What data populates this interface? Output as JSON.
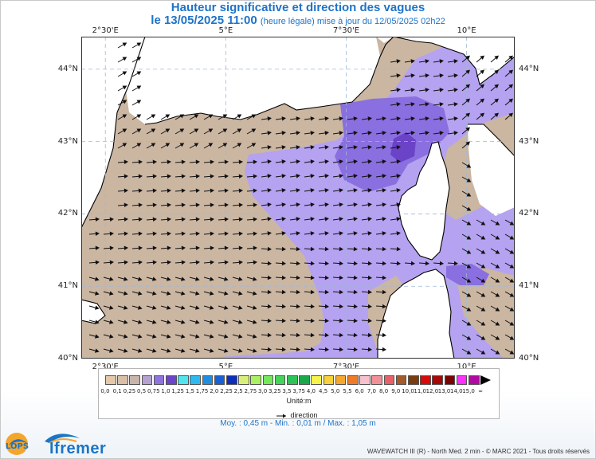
{
  "header": {
    "title": "Hauteur significative et direction des vagues",
    "date_time": "le 13/05/2025 11:00",
    "update_note": "(heure légale) mise à jour du 12/05/2025 02h22"
  },
  "map": {
    "lon_labels": [
      "2°30'E",
      "5°E",
      "7°30'E",
      "10°E"
    ],
    "lat_labels": [
      "44°N",
      "43°N",
      "42°N",
      "41°N",
      "40°N"
    ],
    "lon_values": [
      2.5,
      5,
      7.5,
      10
    ],
    "lat_values": [
      44,
      43,
      42,
      41,
      40
    ],
    "lon_range": [
      2.0,
      11.0
    ],
    "lat_range": [
      40.0,
      44.45
    ],
    "land_color": "#ffffff",
    "grid": "dashed"
  },
  "legend": {
    "colors": [
      "#e3c8aa",
      "#d8bfa8",
      "#c7b4aa",
      "#b5a2d3",
      "#8f74df",
      "#6b45c8",
      "#51e5ef",
      "#2cbaf0",
      "#1e8fe0",
      "#1860d8",
      "#0d2eb8",
      "#d8f07a",
      "#aaf060",
      "#75e85a",
      "#44d45a",
      "#2fc257",
      "#1aa84a",
      "#f4f44a",
      "#f8d03a",
      "#f4a830",
      "#ef7b27",
      "#f8c2cc",
      "#f2909a",
      "#e8606a",
      "#a45a2a",
      "#7a3d12",
      "#d80a0a",
      "#a80808",
      "#7a0404",
      "#ff30ff",
      "#b00aa0",
      "#000000"
    ],
    "tick_labels": [
      "0,0",
      "0,1",
      "0,25",
      "0,5",
      "0,75",
      "1,0",
      "1,25",
      "1,5",
      "1,75",
      "2,0",
      "2,25",
      "2,5",
      "2,75",
      "3,0",
      "3,25",
      "3,5",
      "3,75",
      "4,0",
      "4,5",
      "5,0",
      "5,5",
      "6,0",
      "7,0",
      "8,0",
      "9,0",
      "10,0",
      "11,0",
      "12,0",
      "13,0",
      "14,0",
      "15,0",
      "∞"
    ],
    "unit": "Unité:m",
    "direction_label": "direction"
  },
  "stats": "Moy. : 0,45 m   -   Min. : 0,01 m / Max. : 1,05 m",
  "branding": {
    "lops": "LOPS",
    "ifremer": "Ifremer"
  },
  "footer": "WAVEWATCH III (R) - North Med. 2 min - © MARC 2021 - Tous droits réservés"
}
